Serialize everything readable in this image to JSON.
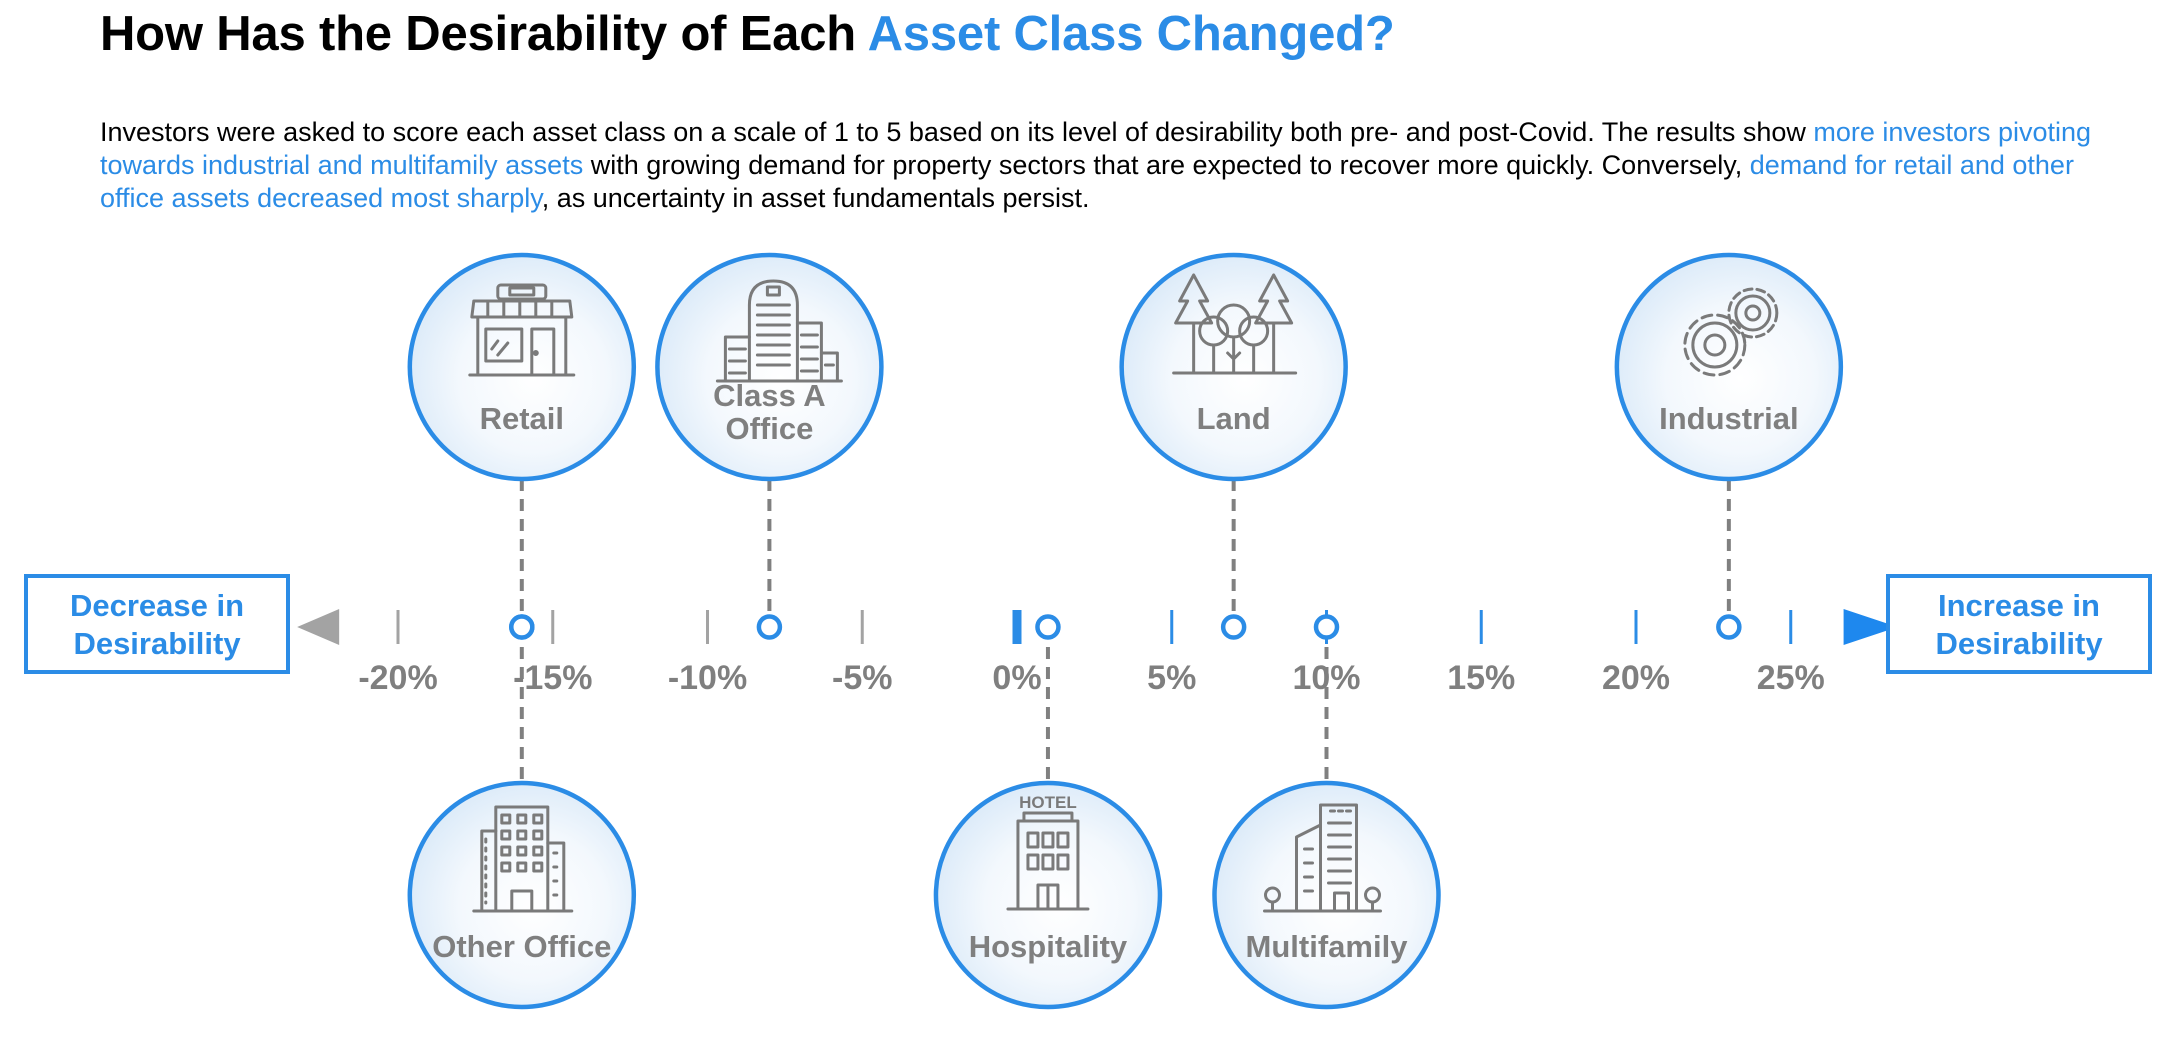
{
  "title": {
    "prefix": "How Has the Desirability of Each ",
    "highlight": "Asset Class Changed?"
  },
  "intro": {
    "t1": "Investors were asked to score each asset class on a scale of 1 to 5 based on its level of desirability both pre- and post-Covid. The results show ",
    "h1": "more investors pivoting towards industrial and multifamily assets",
    "t2": " with growing demand for property sectors that are expected to recover more quickly. Conversely, ",
    "h2": "demand for retail and other office assets decreased most sharply",
    "t3": ", as uncertainty in asset fundamentals persist."
  },
  "colors": {
    "accent": "#2b8ce6",
    "axis_gray": "#a3a3a3",
    "icon_gray": "#7a7a7a",
    "text_gray": "#7f7f7f"
  },
  "chart_data": {
    "type": "scatter",
    "x_ticks": [
      -20,
      -15,
      -10,
      -5,
      0,
      5,
      10,
      15,
      20,
      25
    ],
    "x_tick_labels": [
      "-20%",
      "-15%",
      "-10%",
      "-5%",
      "0%",
      "5%",
      "10%",
      "15%",
      "20%",
      "25%"
    ],
    "xlim": [
      -23,
      28
    ],
    "left_label": [
      "Decrease in",
      "Desirability"
    ],
    "right_label": [
      "Increase in",
      "Desirability"
    ],
    "points": [
      {
        "name": "Retail",
        "label_lines": [
          "Retail"
        ],
        "value": -16,
        "side": "top",
        "icon": "storefront-icon"
      },
      {
        "name": "Class A Office",
        "label_lines": [
          "Class A",
          "Office"
        ],
        "value": -8,
        "side": "top",
        "icon": "office-buildings-icon"
      },
      {
        "name": "Land",
        "label_lines": [
          "Land"
        ],
        "value": 7,
        "side": "top",
        "icon": "trees-icon"
      },
      {
        "name": "Industrial",
        "label_lines": [
          "Industrial"
        ],
        "value": 23,
        "side": "top",
        "icon": "gears-icon"
      },
      {
        "name": "Other Office",
        "label_lines": [
          "Other Office"
        ],
        "value": -16,
        "side": "bottom",
        "icon": "office-tower-icon"
      },
      {
        "name": "Hospitality",
        "label_lines": [
          "Hospitality"
        ],
        "value": 1,
        "side": "bottom",
        "icon": "hotel-icon",
        "sign": "HOTEL"
      },
      {
        "name": "Multifamily",
        "label_lines": [
          "Multifamily"
        ],
        "value": 10,
        "side": "bottom",
        "icon": "apartment-building-icon"
      }
    ]
  }
}
